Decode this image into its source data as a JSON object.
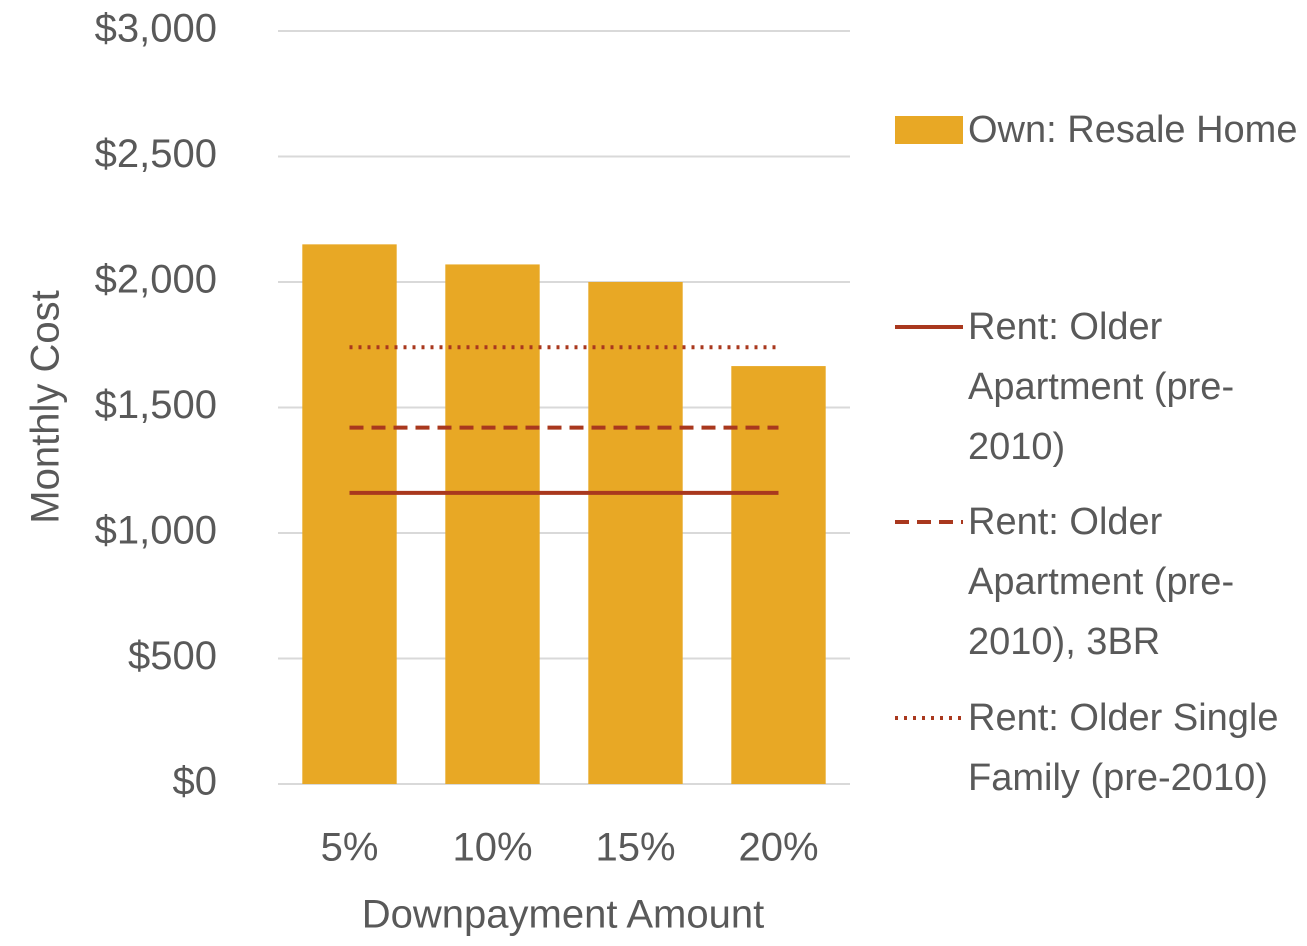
{
  "chart_data": {
    "type": "bar",
    "x_label": "Downpayment Amount",
    "y_label": "Monthly Cost",
    "categories": [
      "5%",
      "10%",
      "15%",
      "20%"
    ],
    "series": [
      {
        "name": "Own: Resale Home",
        "type": "bar",
        "color": "#e8a825",
        "values": [
          2150,
          2070,
          2000,
          1665
        ]
      },
      {
        "name": "Rent: Older Apartment (pre-2010)",
        "type": "line",
        "dash": "solid",
        "color": "#a9381e",
        "values": [
          1160,
          1160,
          1160,
          1160
        ]
      },
      {
        "name": "Rent: Older Apartment (pre-2010), 3BR",
        "type": "line",
        "dash": "dashed",
        "color": "#a9381e",
        "values": [
          1420,
          1420,
          1420,
          1420
        ]
      },
      {
        "name": "Rent: Older Single Family (pre-2010)",
        "type": "line",
        "dash": "dotted",
        "color": "#a9381e",
        "values": [
          1740,
          1740,
          1740,
          1740
        ]
      }
    ],
    "ylim": [
      0,
      3000
    ],
    "yticks": [
      {
        "value": 0,
        "label": "$0"
      },
      {
        "value": 500,
        "label": "$500"
      },
      {
        "value": 1000,
        "label": "$1,000"
      },
      {
        "value": 1500,
        "label": "$1,500"
      },
      {
        "value": 2000,
        "label": "$2,000"
      },
      {
        "value": 2500,
        "label": "$2,500"
      },
      {
        "value": 3000,
        "label": "$3,000"
      }
    ],
    "grid": true,
    "legend": "right"
  }
}
